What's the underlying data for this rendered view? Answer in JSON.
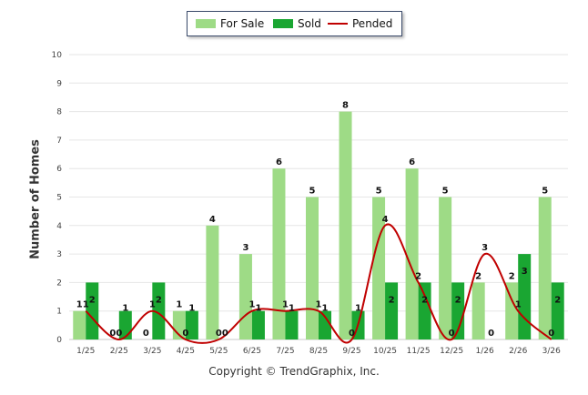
{
  "legend": {
    "for_sale": "For Sale",
    "sold": "Sold",
    "pended": "Pended"
  },
  "copyright": "Copyright © TrendGraphix, Inc.",
  "colors": {
    "for_sale": "#9edb86",
    "sold": "#1aa632",
    "pended": "#c00000",
    "grid": "#e6e6e6"
  },
  "chart_data": {
    "type": "bar",
    "ylabel": "Number of Homes",
    "ylim": [
      0,
      10
    ],
    "yticks": [
      0,
      1,
      2,
      3,
      4,
      5,
      6,
      7,
      8,
      9,
      10
    ],
    "grid": true,
    "legend_position": "top-center",
    "categories": [
      "1/25",
      "2/25",
      "3/25",
      "4/25",
      "5/25",
      "6/25",
      "7/25",
      "8/25",
      "9/25",
      "10/25",
      "11/25",
      "12/25",
      "1/26",
      "2/26",
      "3/26"
    ],
    "series": [
      {
        "name": "For Sale",
        "type": "bar",
        "values": [
          1,
          0,
          0,
          1,
          4,
          3,
          6,
          5,
          8,
          5,
          6,
          5,
          2,
          2,
          5
        ]
      },
      {
        "name": "Sold",
        "type": "bar",
        "values": [
          2,
          1,
          2,
          1,
          0,
          1,
          1,
          1,
          1,
          2,
          2,
          2,
          0,
          3,
          2
        ]
      },
      {
        "name": "Pended",
        "type": "line",
        "values": [
          1,
          0,
          1,
          0,
          0,
          1,
          1,
          1,
          0,
          4,
          2,
          0,
          3,
          1,
          0
        ]
      }
    ]
  }
}
